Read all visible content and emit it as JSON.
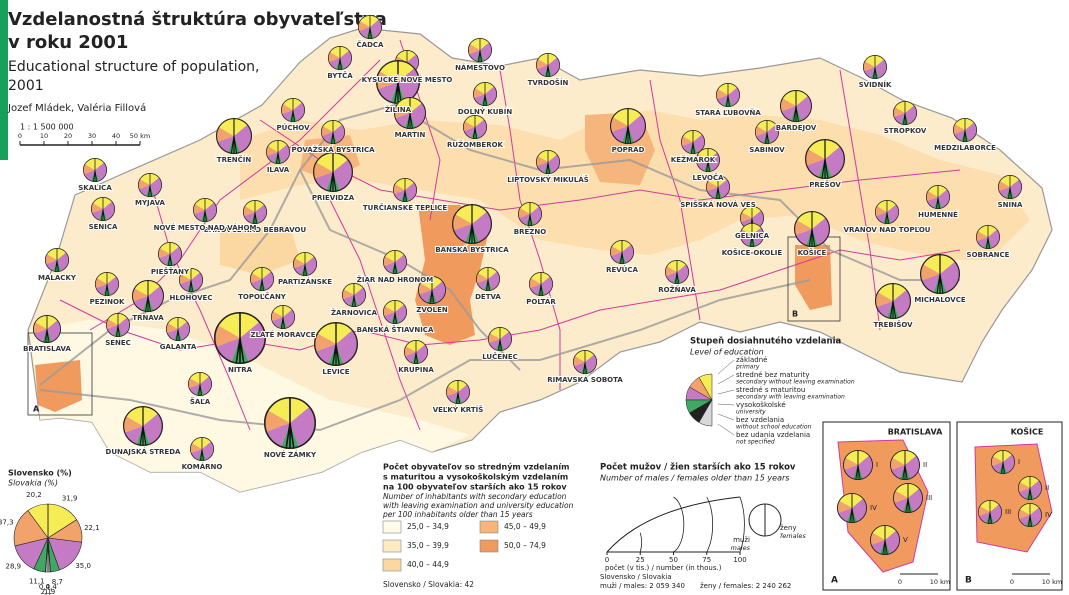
{
  "header": {
    "title": [
      "Vzdelanostná štruktúra obyvateľstva",
      "v roku 2001"
    ],
    "subtitle": [
      "Educational structure of population,",
      "2001"
    ],
    "authors": "Jozef Mládek, Valéria Fillová",
    "scale": {
      "ratio": "1 : 1 500 000",
      "ticks": [
        "0",
        "10",
        "20",
        "30",
        "40",
        "50 km"
      ]
    }
  },
  "districts": [
    "ČADCA",
    "NÁMESTOVO",
    "BYTČA",
    "KYSUCKÉ NOVÉ MESTO",
    "TVRDOŠÍN",
    "DOLNÝ KUBÍN",
    "ŽILINA",
    "PÚCHOV",
    "POVAŽSKÁ BYSTRICA",
    "MARTIN",
    "RUŽOMBEROK",
    "LIPTOVSKÝ MIKULÁŠ",
    "POPRAD",
    "STARÁ ĽUBOVŇA",
    "SVIDNÍK",
    "BARDEJOV",
    "STROPKOV",
    "MEDZILABORCE",
    "KEŽMAROK",
    "SABINOV",
    "LEVOČA",
    "PREŠOV",
    "SPIŠSKÁ NOVÁ VES",
    "HUMENNÉ",
    "SNINA",
    "VRANOV NAD TOPĽOU",
    "GELNICA",
    "KOŠICE",
    "KOŠICE-OKOLIE",
    "SOBRANCE",
    "MICHALOVCE",
    "TREBIŠOV",
    "ROŽŇAVA",
    "REVÚCA",
    "BREZNO",
    "BANSKÁ BYSTRICA",
    "DETVA",
    "POLTÁR",
    "ZVOLEN",
    "LUČENEC",
    "RIMAVSKÁ SOBOTA",
    "VEĽKÝ KRTÍŠ",
    "KRUPINA",
    "BANSKÁ ŠTIAVNICA",
    "ŽARNOVICA",
    "ŽIAR NAD HRONOM",
    "TURČIANSKE TEPLICE",
    "PRIEVIDZA",
    "PARTIZÁNSKE",
    "BÁNOVCE NAD BEBRAVOU",
    "NOVÉ MESTO NAD VÁHOM",
    "TRENČÍN",
    "ILAVA",
    "MYJAVA",
    "SKALICA",
    "SENICA",
    "MALACKY",
    "PIEŠŤANY",
    "TOPOĽČANY",
    "HLOHOVEC",
    "TRNAVA",
    "PEZINOK",
    "SENEC",
    "BRATISLAVA",
    "GALANTA",
    "ZLATÉ MORAVCE",
    "NITRA",
    "ŠAĽA",
    "LEVICE",
    "DUNAJSKÁ STREDA",
    "NOVÉ ZÁMKY",
    "KOMÁRNO"
  ],
  "chart_data": {
    "type": "pie",
    "title": "Slovensko (%)",
    "subtitle": "Slovakia (%)",
    "colors": [
      "#f6ec55",
      "#f2a36c",
      "#c57bc4",
      "#3fa862",
      "#222222",
      "#d8d8d8"
    ],
    "series": [
      {
        "values": [
          31.9,
          22.1,
          35.0,
          8.7,
          0.4,
          1.9
        ],
        "value_labels": [
          "31,9",
          "22,1",
          "35,0",
          "8,7",
          "0,4",
          "1,9"
        ]
      },
      {
        "values": [
          20.2,
          37.3,
          28.9,
          11.1,
          0.4,
          2.1
        ],
        "value_labels": [
          "20,2",
          "37,3",
          "28,9",
          "11,1",
          "0,4",
          "2,1"
        ]
      }
    ]
  },
  "levels_legend": {
    "title": "Stupeň dosiahnutého vzdelania",
    "subtitle": "Level of education",
    "items": [
      {
        "sk": "základné",
        "en": "primary"
      },
      {
        "sk": "stredné bez maturity",
        "en": "secondary without leaving examination"
      },
      {
        "sk": "stredné s maturitou",
        "en": "secondary with leaving examination"
      },
      {
        "sk": "vysokoškolské",
        "en": "university"
      },
      {
        "sk": "bez vzdelania",
        "en": "without school education"
      },
      {
        "sk": "bez udania vzdelania",
        "en": "not specified"
      }
    ]
  },
  "choropleth_legend": {
    "title": [
      "Počet obyvateľov so stredným vzdelaním",
      "s maturitou a vysokoškolským vzdelaním",
      "na 100 obyvateľov starších ako 15 rokov"
    ],
    "subtitle": [
      "Number of inhabitants with secondary education",
      "with leaving examination and university education",
      "per 100 inhabitants older than 15 years"
    ],
    "classes": [
      {
        "label": "25,0 – 34,9",
        "color": "#fffbe8"
      },
      {
        "label": "35,0 – 39,9",
        "color": "#fdebc4"
      },
      {
        "label": "40,0 – 44,9",
        "color": "#fbd8a2"
      },
      {
        "label": "45,0 – 49,9",
        "color": "#f6b57c"
      },
      {
        "label": "50,0 – 74,9",
        "color": "#f19a5e"
      }
    ],
    "note": "Slovensko / Slovakia: 42"
  },
  "size_legend": {
    "title": "Počet mužov / žien starších ako 15 rokov",
    "subtitle": "Number of males / females older than 15 years",
    "ticks": [
      0,
      25,
      50,
      75,
      100
    ],
    "axis_label": "počet (v tis.) / number (in thous.)",
    "males": "muži",
    "males_en": "males",
    "females": "ženy",
    "females_en": "females",
    "total_title": "Slovensko / Slovakia",
    "total_males": "muži / males: 2 059 340",
    "total_females": "ženy / females: 2 240 262"
  },
  "insets": [
    {
      "letter": "A",
      "title": "BRATISLAVA",
      "parts": [
        "I",
        "II",
        "III",
        "IV",
        "V"
      ]
    },
    {
      "letter": "B",
      "title": "KOŠICE",
      "parts": [
        "I",
        "II",
        "III",
        "IV"
      ]
    }
  ],
  "inset_scale": [
    "0",
    "10 km"
  ]
}
